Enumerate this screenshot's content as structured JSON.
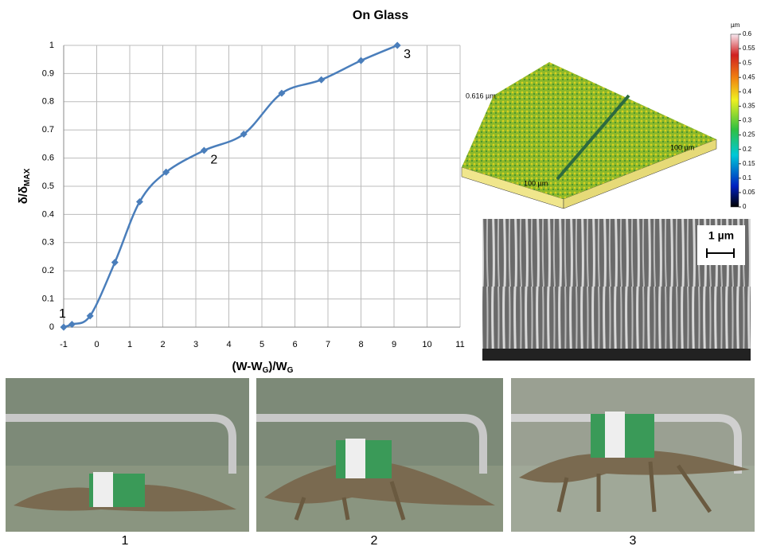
{
  "chart_data": {
    "type": "line",
    "title": "On Glass",
    "x_label": [
      "(W-W",
      "G",
      ")/W",
      "G"
    ],
    "y_label": [
      "δ/δ",
      "MAX"
    ],
    "x": [
      -1,
      -0.75,
      -0.2,
      0.55,
      1.3,
      2.1,
      3.25,
      4.45,
      5.6,
      6.8,
      8,
      9.1
    ],
    "series": [
      {
        "color": "#4a7ebb",
        "values": [
          0,
          0.01,
          0.04,
          0.23,
          0.445,
          0.55,
          0.627,
          0.685,
          0.83,
          0.878,
          0.946,
          1.0
        ],
        "point_labels": [
          "1",
          null,
          null,
          null,
          null,
          null,
          "2",
          null,
          null,
          null,
          null,
          "3"
        ]
      }
    ],
    "xlim": [
      -1,
      11
    ],
    "xticks": [
      -1,
      0,
      1,
      2,
      3,
      4,
      5,
      6,
      7,
      8,
      9,
      10,
      11
    ],
    "ylim": [
      0,
      1
    ],
    "yticks": [
      0,
      0.1,
      0.2,
      0.3,
      0.4,
      0.5,
      0.6,
      0.7,
      0.8,
      0.9,
      1
    ],
    "grid": true
  },
  "afm": {
    "height_label": "0.616 µm",
    "width_label_left": "100 µm",
    "width_label_right": "100 µm",
    "colorbar": {
      "unit": "µm",
      "lim": [
        0,
        0.6
      ],
      "ticks": [
        0,
        0.05,
        0.1,
        0.15,
        0.2,
        0.25,
        0.3,
        0.35,
        0.4,
        0.45,
        0.5,
        0.55,
        0.6
      ]
    }
  },
  "sem": {
    "scale_label": "1 µm"
  },
  "photos": {
    "captions": [
      "1",
      "2",
      "3"
    ]
  }
}
